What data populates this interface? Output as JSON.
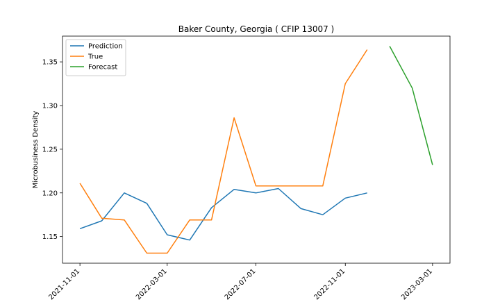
{
  "chart_data": {
    "type": "line",
    "title": "Baker County, Georgia ( CFIP 13007 )",
    "xlabel": "",
    "ylabel": "Microbusiness Density",
    "xlim": [
      "2021-10-08",
      "2023-03-25"
    ],
    "ylim": [
      1.1195,
      1.3795
    ],
    "grid": false,
    "legend_position": "top-left",
    "x_ticks": [
      "2021-11-01",
      "2022-03-01",
      "2022-07-01",
      "2022-11-01",
      "2023-03-01"
    ],
    "y_ticks": [
      1.15,
      1.2,
      1.25,
      1.3,
      1.35
    ],
    "y_tick_labels": [
      "1.15",
      "1.20",
      "1.25",
      "1.30",
      "1.35"
    ],
    "series": [
      {
        "name": "Prediction",
        "color": "#1f77b4",
        "x": [
          "2021-11-01",
          "2021-12-01",
          "2022-01-01",
          "2022-02-01",
          "2022-03-01",
          "2022-04-01",
          "2022-05-01",
          "2022-06-01",
          "2022-07-01",
          "2022-08-01",
          "2022-09-01",
          "2022-10-01",
          "2022-11-01",
          "2022-12-01"
        ],
        "values": [
          1.159,
          1.168,
          1.2,
          1.188,
          1.152,
          1.146,
          1.183,
          1.204,
          1.2,
          1.205,
          1.182,
          1.175,
          1.194,
          1.2
        ]
      },
      {
        "name": "True",
        "color": "#ff7f0e",
        "x": [
          "2021-11-01",
          "2021-12-01",
          "2022-01-01",
          "2022-02-01",
          "2022-03-01",
          "2022-04-01",
          "2022-05-01",
          "2022-06-01",
          "2022-07-01",
          "2022-08-01",
          "2022-09-01",
          "2022-10-01",
          "2022-11-01",
          "2022-12-01"
        ],
        "values": [
          1.211,
          1.171,
          1.169,
          1.131,
          1.131,
          1.169,
          1.169,
          1.286,
          1.208,
          1.208,
          1.208,
          1.208,
          1.325,
          1.364
        ]
      },
      {
        "name": "Forecast",
        "color": "#2ca02c",
        "x": [
          "2023-01-01",
          "2023-02-01",
          "2023-03-01"
        ],
        "values": [
          1.368,
          1.32,
          1.232
        ]
      }
    ]
  }
}
